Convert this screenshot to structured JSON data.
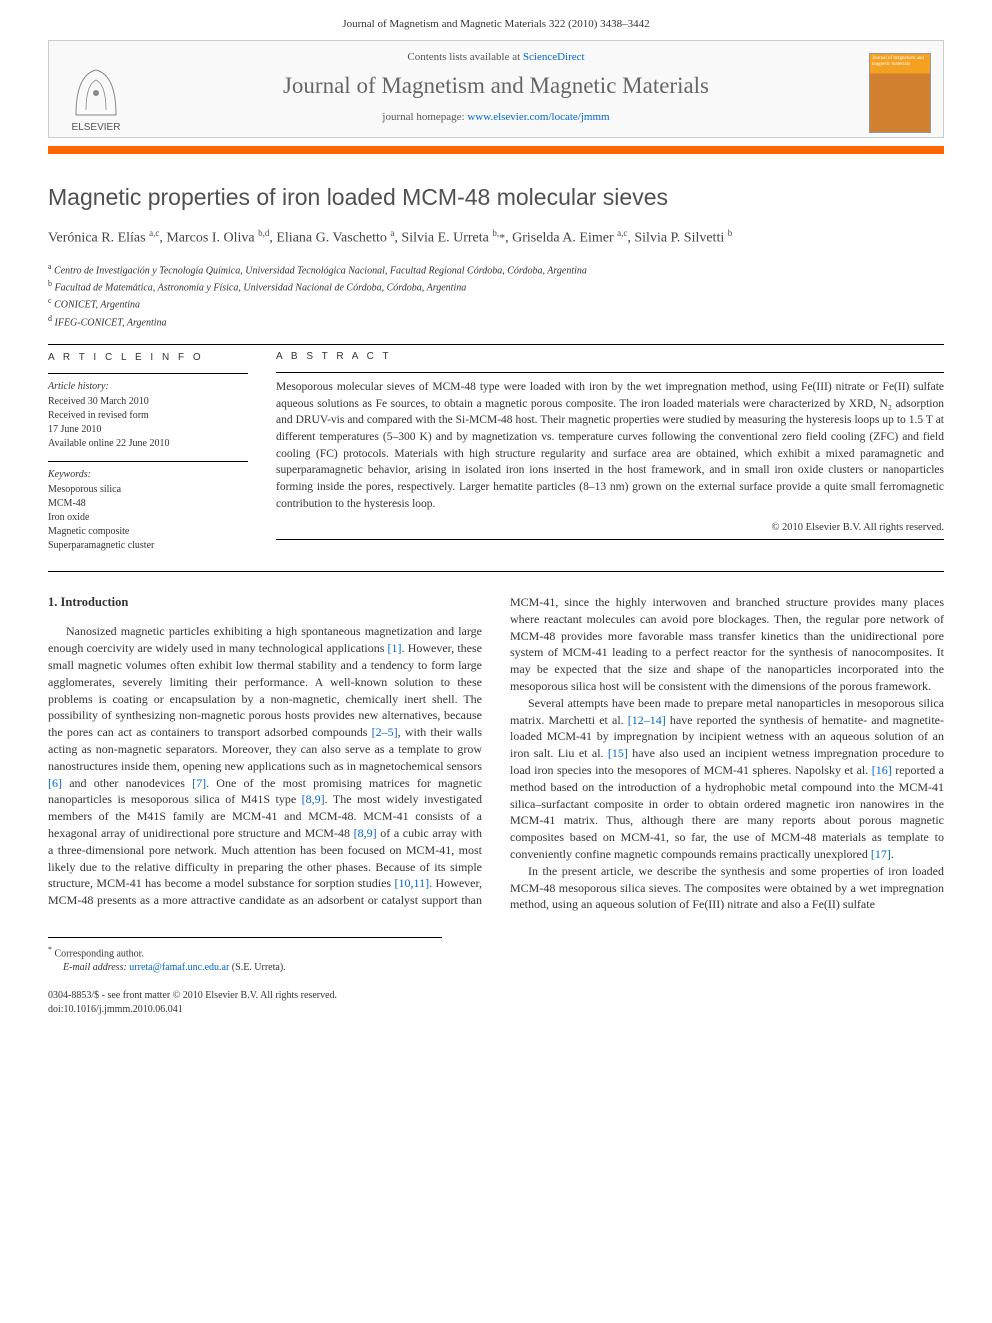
{
  "header": {
    "citation": "Journal of Magnetism and Magnetic Materials 322 (2010) 3438–3442",
    "contents_prefix": "Contents lists available at ",
    "contents_link": "ScienceDirect",
    "journal_name": "Journal of Magnetism and Magnetic Materials",
    "homepage_prefix": "journal homepage: ",
    "homepage_link": "www.elsevier.com/locate/jmmm",
    "publisher": "ELSEVIER",
    "cover_text": "Journal of magnetism and magnetic materials"
  },
  "title": "Magnetic properties of iron loaded MCM-48 molecular sieves",
  "authors_html": "Verónica R. Elías <sup>a,c</sup>, Marcos I. Oliva <sup>b,d</sup>, Eliana G. Vaschetto <sup>a</sup>, Silvia E. Urreta <sup>b,</sup><span class='corresp-marker'>*</span>, Griselda A. Eimer <sup>a,c</sup>, Silvia P. Silvetti <sup>b</sup>",
  "affiliations": [
    {
      "mark": "a",
      "text": "Centro de Investigación y Tecnología Química, Universidad Tecnológica Nacional, Facultad Regional Córdoba, Córdoba, Argentina"
    },
    {
      "mark": "b",
      "text": "Facultad de Matemática, Astronomía y Física, Universidad Nacional de Córdoba, Córdoba, Argentina"
    },
    {
      "mark": "c",
      "text": "CONICET, Argentina"
    },
    {
      "mark": "d",
      "text": "IFEG-CONICET, Argentina"
    }
  ],
  "info": {
    "heading": "A R T I C L E   I N F O",
    "history_label": "Article history:",
    "received": "Received 30 March 2010",
    "revised_1": "Received in revised form",
    "revised_2": "17 June 2010",
    "online": "Available online 22 June 2010",
    "keywords_label": "Keywords:",
    "keywords": [
      "Mesoporous silica",
      "MCM-48",
      "Iron oxide",
      "Magnetic composite",
      "Superparamagnetic cluster"
    ]
  },
  "abstract": {
    "heading": "A B S T R A C T",
    "text": "Mesoporous molecular sieves of MCM-48 type were loaded with iron by the wet impregnation method, using Fe(III) nitrate or Fe(II) sulfate aqueous solutions as Fe sources, to obtain a magnetic porous composite. The iron loaded materials were characterized by XRD, N₂ adsorption and DRUV-vis and compared with the Si-MCM-48 host. Their magnetic properties were studied by measuring the hysteresis loops up to 1.5 T at different temperatures (5–300 K) and by magnetization vs. temperature curves following the conventional zero field cooling (ZFC) and field cooling (FC) protocols. Materials with high structure regularity and surface area are obtained, which exhibit a mixed paramagnetic and superparamagnetic behavior, arising in isolated iron ions inserted in the host framework, and in small iron oxide clusters or nanoparticles forming inside the pores, respectively. Larger hematite particles (8–13 nm) grown on the external surface provide a quite small ferromagnetic contribution to the hysteresis loop.",
    "copyright": "© 2010 Elsevier B.V. All rights reserved."
  },
  "body": {
    "section1_heading": "1. Introduction",
    "p1_a": "Nanosized magnetic particles exhibiting a high spontaneous magnetization and large enough coercivity are widely used in many technological applications ",
    "p1_b": ". However, these small magnetic volumes often exhibit low thermal stability and a tendency to form large agglomerates, severely limiting their performance. A well-known solution to these problems is coating or encapsulation by a non-magnetic, chemically inert shell. The possibility of synthesizing non-magnetic porous hosts provides new alternatives, because the pores can act as containers to transport adsorbed compounds ",
    "p1_c": ", with their walls acting as non-magnetic separators. Moreover, they can also serve as a template to grow nanostructures inside them, opening new applications such as in magnetochemical sensors ",
    "p1_d": " and other nanodevices ",
    "p1_e": ". One of the most promising matrices for magnetic nanoparticles is mesoporous silica of M41S type ",
    "p1_f": ". The most widely investigated members of the M41S family are MCM-41 and MCM-48. MCM-41 consists of a hexagonal array of unidirectional pore structure and MCM-48 ",
    "p1_g": " of a cubic array with a three-dimensional pore network. Much attention has been focused on MCM-41, most likely due to the relative difficulty in preparing the other phases. Because of its simple structure, MCM-41 has become a model substance for sorption studies ",
    "p1_h": ". ",
    "p1_i": "However, MCM-48 presents as a more attractive candidate as an adsorbent or catalyst support than MCM-41, since the highly interwoven and branched structure provides many places where reactant molecules can avoid pore blockages. Then, the regular pore network of MCM-48 provides more favorable mass transfer kinetics than the unidirectional pore system of MCM-41 leading to a perfect reactor for the synthesis of nanocomposites. It may be expected that the size and shape of the nanoparticles incorporated into the mesoporous silica host will be consistent with the dimensions of the porous framework.",
    "p2_a": "Several attempts have been made to prepare metal nanoparticles in mesoporous silica matrix. Marchetti et al. ",
    "p2_b": " have reported the synthesis of hematite- and magnetite-loaded MCM-41 by impregnation by incipient wetness with an aqueous solution of an iron salt. Liu et al. ",
    "p2_c": " have also used an incipient wetness impregnation procedure to load iron species into the mesopores of MCM-41 spheres. Napolsky et al. ",
    "p2_d": " reported a method based on the introduction of a hydrophobic metal compound into the MCM-41 silica–surfactant composite in order to obtain ordered magnetic iron nanowires in the MCM-41 matrix. Thus, although there are many reports about porous magnetic composites based on MCM-41, so far, the use of MCM-48 materials as template to conveniently confine magnetic compounds remains practically unexplored ",
    "p2_e": ".",
    "p3": "In the present article, we describe the synthesis and some properties of iron loaded MCM-48 mesoporous silica sieves. The composites were obtained by a wet impregnation method, using an aqueous solution of Fe(III) nitrate and also a Fe(II) sulfate",
    "refs": {
      "r1": "[1]",
      "r2_5": "[2–5]",
      "r6": "[6]",
      "r7": "[7]",
      "r8_9a": "[8,9]",
      "r8_9b": "[8,9]",
      "r10_11": "[10,11]",
      "r12_14": "[12–14]",
      "r15": "[15]",
      "r16": "[16]",
      "r17": "[17]"
    }
  },
  "footer": {
    "corresp_label": "* Corresponding author.",
    "email_label": "E-mail address: ",
    "email": "urreta@famaf.unc.edu.ar",
    "email_name": " (S.E. Urreta).",
    "issn_line": "0304-8853/$ - see front matter © 2010 Elsevier B.V. All rights reserved.",
    "doi_line": "doi:10.1016/j.jmmm.2010.06.041"
  },
  "colors": {
    "accent": "#ff6600",
    "link": "#0066cc",
    "title_gray": "#505050"
  }
}
